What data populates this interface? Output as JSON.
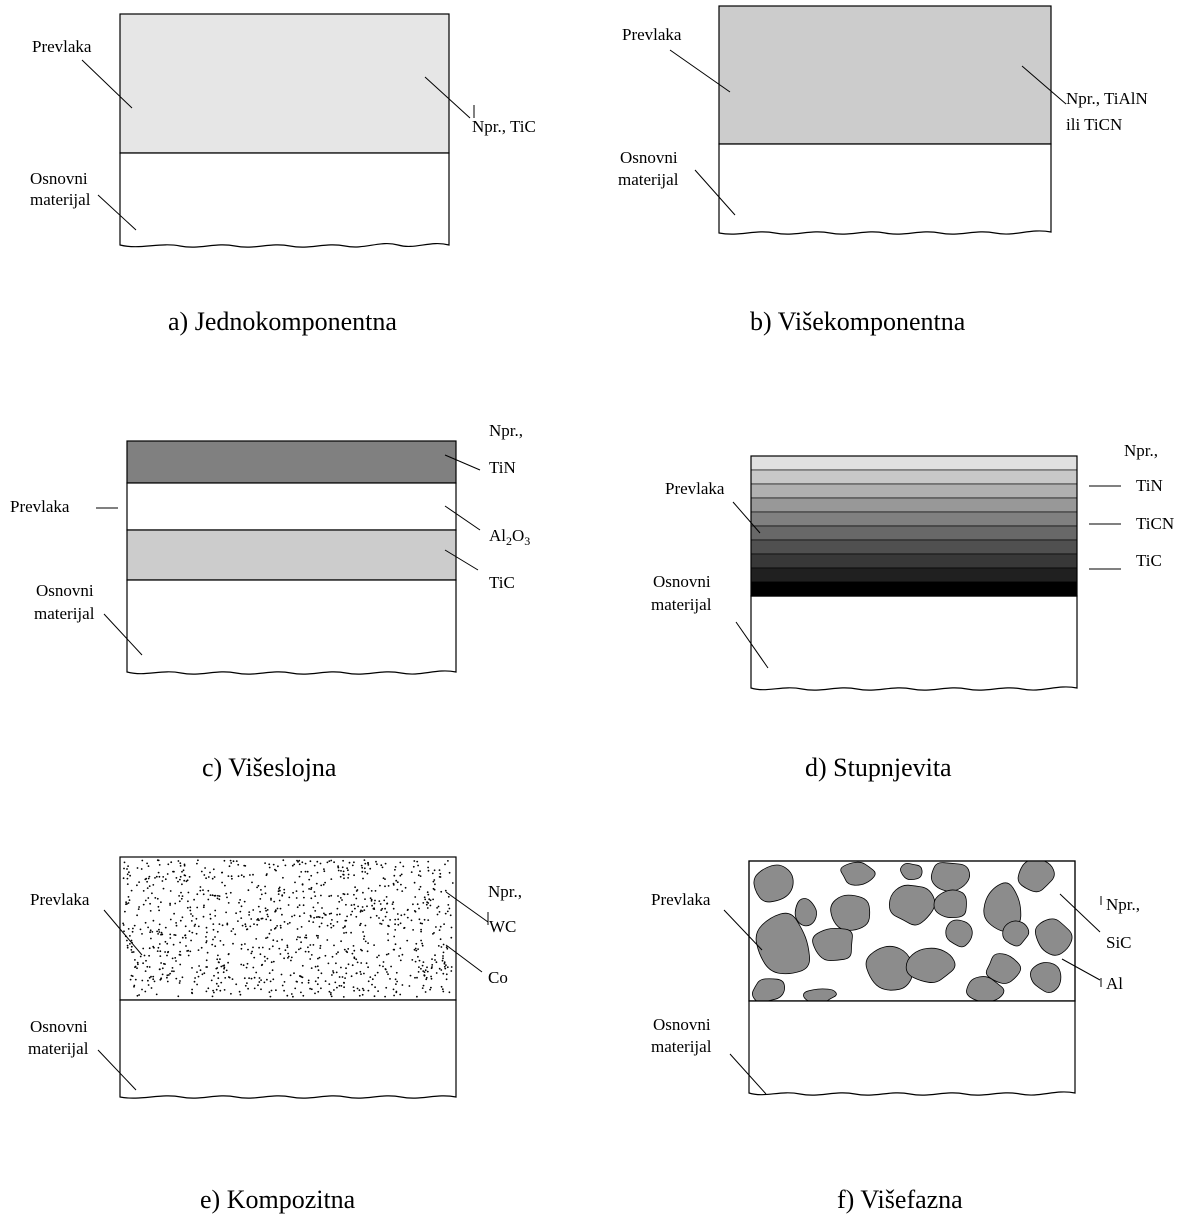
{
  "panels": {
    "a": {
      "caption": "a) Jednokomponentna",
      "coating_label": "Prevlaka",
      "substrate_label_1": "Osnovni",
      "substrate_label_2": "materijal",
      "example_label": "Npr., TiC",
      "coating_color": "#e6e6e6"
    },
    "b": {
      "caption": "b) Višekomponentna",
      "coating_label": "Prevlaka",
      "substrate_label_1": "Osnovni",
      "substrate_label_2": "materijal",
      "example_label_1": "Npr., TiAlN",
      "example_label_2": "ili TiCN",
      "coating_color": "#cccccc"
    },
    "c": {
      "caption": "c) Višeslojna",
      "coating_label": "Prevlaka",
      "substrate_label_1": "Osnovni",
      "substrate_label_2": "materijal",
      "example_label": "Npr.,",
      "layer_1": "TiN",
      "layer_2": "Al",
      "layer_2_sub_1": "2",
      "layer_2_mid": "O",
      "layer_2_sub_2": "3",
      "layer_3": "TiC",
      "layer_colors": [
        "#808080",
        "#ffffff",
        "#cccccc"
      ]
    },
    "d": {
      "caption": "d) Stupnjevita",
      "coating_label": "Prevlaka",
      "substrate_label_1": "Osnovni",
      "substrate_label_2": "materijal",
      "example_label": "Npr.,",
      "layer_1": "TiN",
      "layer_2": "TiCN",
      "layer_3": "TiC",
      "gradient_colors": [
        "#e0e0e0",
        "#c8c8c8",
        "#b0b0b0",
        "#989898",
        "#808080",
        "#686868",
        "#505050",
        "#383838",
        "#202020",
        "#000000"
      ]
    },
    "e": {
      "caption": "e) Kompozitna",
      "coating_label": "Prevlaka",
      "substrate_label_1": "Osnovni",
      "substrate_label_2": "materijal",
      "example_label": "Npr.,",
      "particle_label": "WC",
      "matrix_label": "Co"
    },
    "f": {
      "caption": "f) Višefazna",
      "coating_label": "Prevlaka",
      "substrate_label_1": "Osnovni",
      "substrate_label_2": "materijal",
      "example_label": "Npr.,",
      "particle_label": "SiC",
      "matrix_label": "Al",
      "particle_color": "#8c8c8c"
    }
  }
}
